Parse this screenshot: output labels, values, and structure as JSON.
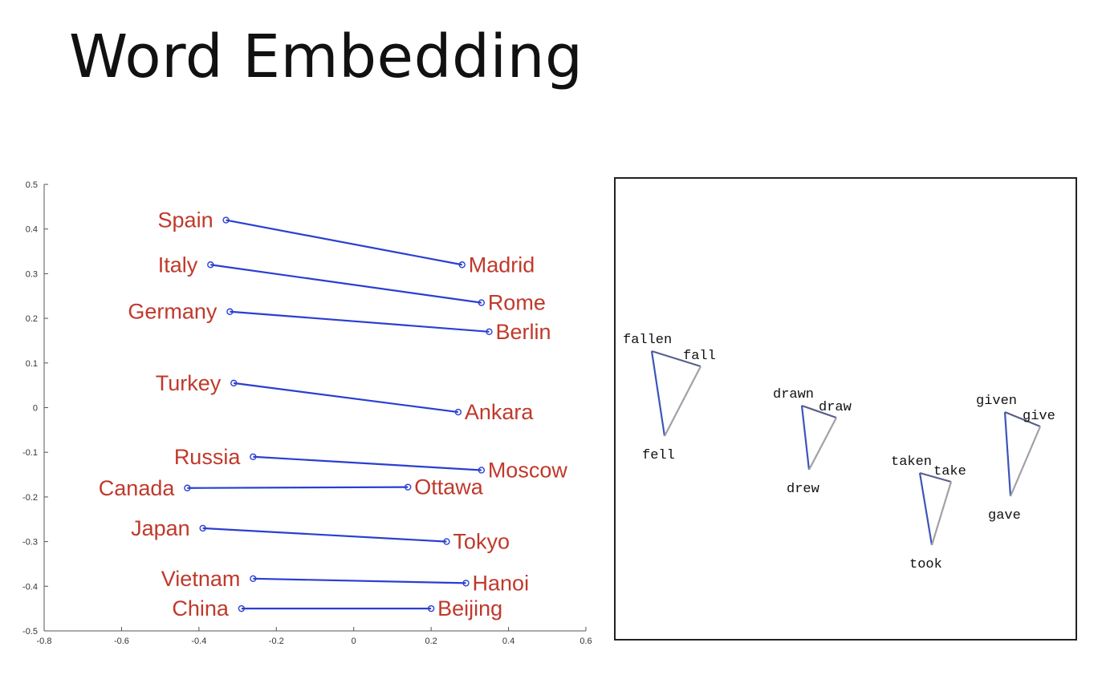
{
  "slide": {
    "title": "Word Embedding"
  },
  "chart_data": [
    {
      "type": "scatter",
      "xlim": [
        -0.8,
        0.6
      ],
      "ylim": [
        -0.5,
        0.5
      ],
      "xticks": [
        "-0.8",
        "-0.6",
        "-0.4",
        "-0.2",
        "0",
        "0.2",
        "0.4",
        "0.6"
      ],
      "yticks": [
        "0.5",
        "0.4",
        "0.3",
        "0.2",
        "0.1",
        "0",
        "-0.1",
        "-0.2",
        "-0.3",
        "-0.4",
        "-0.5"
      ],
      "colors": {
        "points": "#2a3fd1",
        "labels": "#c0392b"
      },
      "pairs": [
        {
          "country": "Spain",
          "cx": -0.33,
          "cy": 0.42,
          "capital": "Madrid",
          "px": 0.28,
          "py": 0.32
        },
        {
          "country": "Italy",
          "cx": -0.37,
          "cy": 0.32,
          "capital": "Rome",
          "px": 0.33,
          "py": 0.235
        },
        {
          "country": "Germany",
          "cx": -0.32,
          "cy": 0.215,
          "capital": "Berlin",
          "px": 0.35,
          "py": 0.17
        },
        {
          "country": "Turkey",
          "cx": -0.31,
          "cy": 0.055,
          "capital": "Ankara",
          "px": 0.27,
          "py": -0.01
        },
        {
          "country": "Russia",
          "cx": -0.26,
          "cy": -0.11,
          "capital": "Moscow",
          "px": 0.33,
          "py": -0.14
        },
        {
          "country": "Canada",
          "cx": -0.43,
          "cy": -0.18,
          "capital": "Ottawa",
          "px": 0.14,
          "py": -0.178
        },
        {
          "country": "Japan",
          "cx": -0.39,
          "cy": -0.27,
          "capital": "Tokyo",
          "px": 0.24,
          "py": -0.3
        },
        {
          "country": "Vietnam",
          "cx": -0.26,
          "cy": -0.383,
          "capital": "Hanoi",
          "px": 0.29,
          "py": -0.393
        },
        {
          "country": "China",
          "cx": -0.29,
          "cy": -0.45,
          "capital": "Beijing",
          "px": 0.2,
          "py": -0.45
        }
      ]
    },
    {
      "type": "scatter",
      "colors": {
        "line_a": "#3d55b8",
        "line_b": "#5a5f8c",
        "line_c": "#a0a0a8"
      },
      "groups": [
        {
          "past_participle": "fallen",
          "base": "fall",
          "past": "fell"
        },
        {
          "past_participle": "drawn",
          "base": "draw",
          "past": "drew"
        },
        {
          "past_participle": "taken",
          "base": "take",
          "past": "took"
        },
        {
          "past_participle": "given",
          "base": "give",
          "past": "gave"
        }
      ]
    }
  ]
}
